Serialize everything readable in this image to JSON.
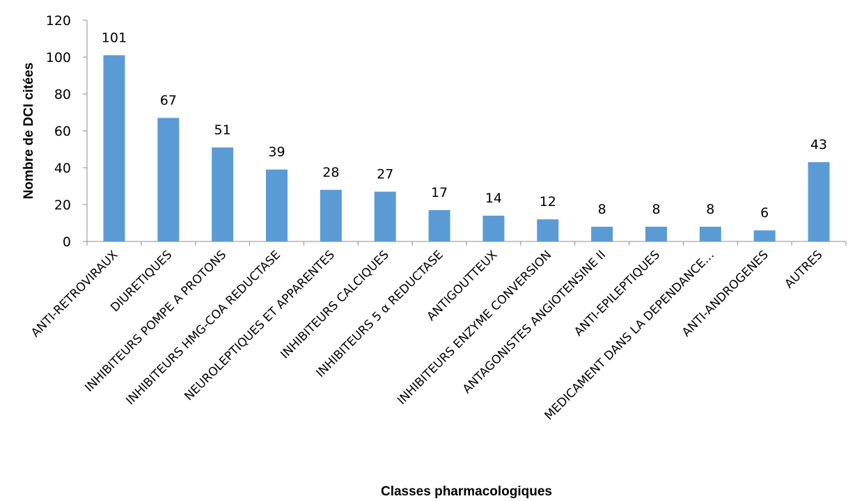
{
  "chart_data": {
    "type": "bar",
    "title": "",
    "xlabel": "Classes pharmacologiques",
    "ylabel": "Nombre de DCI citées",
    "ylim": [
      0,
      120
    ],
    "yticks": [
      0,
      20,
      40,
      60,
      80,
      100,
      120
    ],
    "grid": false,
    "legend": "none",
    "bar_color": "#5B9BD5",
    "categories": [
      "ANTI-RETROVIRAUX",
      "DIURETIQUES",
      "INHIBITEURS POMPE A PROTONS",
      "INHIBITEURS HMG-COA REDUCTASE",
      "NEUROLEPTIQUES ET APPARENTES",
      "INHIBITEURS CALCIQUES",
      "INHIBITEURS 5 α REDUCTASE",
      "ANTIGOUTTEUX",
      "INHIBITEURS ENZYME CONVERSION",
      "ANTAGONISTES ANGIOTENSINE II",
      "ANTI-EPILEPTIQUES",
      "MEDICAMENT DANS LA DEPENDANCE…",
      "ANTI-ANDROGENES",
      "AUTRES"
    ],
    "values": [
      101,
      67,
      51,
      39,
      28,
      27,
      17,
      14,
      12,
      8,
      8,
      8,
      6,
      43
    ]
  }
}
